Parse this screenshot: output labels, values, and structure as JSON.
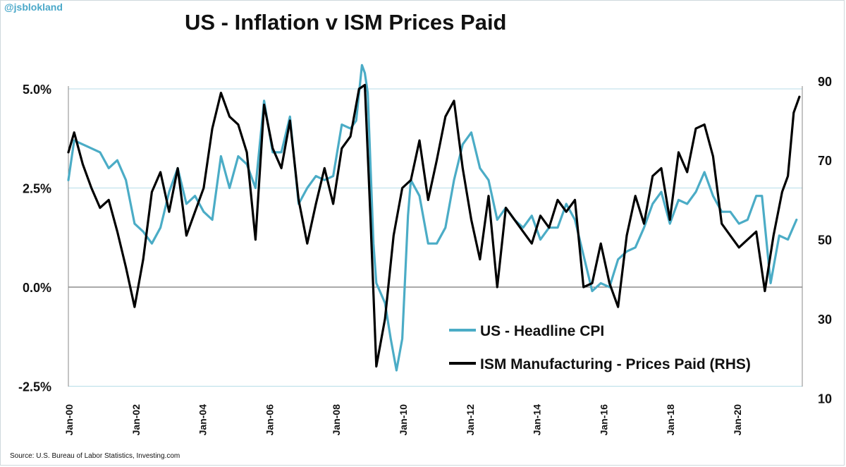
{
  "handle": "@jsblokland",
  "colors": {
    "handle": "#4aa8c9",
    "cpi": "#4bacc6",
    "ism": "#000000",
    "grid": "#b7dde8"
  },
  "source": "Source: U.S. Bureau of Labor Statistics, Investing.com",
  "chart_data": {
    "type": "line",
    "title": "US - Inflation v ISM Prices Paid",
    "xlabel": "",
    "ylabel": "",
    "x_ticks": [
      "Jan-00",
      "Jan-02",
      "Jan-04",
      "Jan-06",
      "Jan-08",
      "Jan-10",
      "Jan-12",
      "Jan-14",
      "Jan-16",
      "Jan-18",
      "Jan-20"
    ],
    "y_left": {
      "ticks": [
        "5.0%",
        "2.5%",
        "0.0%",
        "-2.5%"
      ],
      "values": [
        5.0,
        2.5,
        0.0,
        -2.5
      ],
      "lim": [
        -2.5,
        5.0
      ]
    },
    "y_right": {
      "ticks": [
        "90",
        "70",
        "50",
        "30",
        "10"
      ],
      "values": [
        90,
        70,
        50,
        30,
        10
      ],
      "lim": [
        10,
        90
      ]
    },
    "grid": true,
    "legend_position": "bottom-right",
    "series": [
      {
        "name": "US - Headline CPI",
        "axis": "left",
        "color": "#4bacc6",
        "points": [
          [
            "2000-01",
            2.7
          ],
          [
            "2000-03",
            3.7
          ],
          [
            "2000-06",
            3.6
          ],
          [
            "2000-09",
            3.5
          ],
          [
            "2000-12",
            3.4
          ],
          [
            "2001-03",
            3.0
          ],
          [
            "2001-06",
            3.2
          ],
          [
            "2001-09",
            2.7
          ],
          [
            "2001-12",
            1.6
          ],
          [
            "2002-03",
            1.4
          ],
          [
            "2002-06",
            1.1
          ],
          [
            "2002-09",
            1.5
          ],
          [
            "2002-12",
            2.4
          ],
          [
            "2003-03",
            3.0
          ],
          [
            "2003-06",
            2.1
          ],
          [
            "2003-09",
            2.3
          ],
          [
            "2003-12",
            1.9
          ],
          [
            "2004-03",
            1.7
          ],
          [
            "2004-06",
            3.3
          ],
          [
            "2004-09",
            2.5
          ],
          [
            "2004-12",
            3.3
          ],
          [
            "2005-03",
            3.1
          ],
          [
            "2005-06",
            2.5
          ],
          [
            "2005-09",
            4.7
          ],
          [
            "2005-12",
            3.4
          ],
          [
            "2006-03",
            3.4
          ],
          [
            "2006-06",
            4.3
          ],
          [
            "2006-09",
            2.1
          ],
          [
            "2006-12",
            2.5
          ],
          [
            "2007-03",
            2.8
          ],
          [
            "2007-06",
            2.7
          ],
          [
            "2007-09",
            2.8
          ],
          [
            "2007-12",
            4.1
          ],
          [
            "2008-03",
            4.0
          ],
          [
            "2008-05",
            4.2
          ],
          [
            "2008-07",
            5.6
          ],
          [
            "2008-08",
            5.4
          ],
          [
            "2008-09",
            4.9
          ],
          [
            "2008-11",
            1.1
          ],
          [
            "2008-12",
            0.1
          ],
          [
            "2009-03",
            -0.4
          ],
          [
            "2009-05",
            -1.3
          ],
          [
            "2009-07",
            -2.1
          ],
          [
            "2009-09",
            -1.3
          ],
          [
            "2009-11",
            1.8
          ],
          [
            "2009-12",
            2.7
          ],
          [
            "2010-03",
            2.3
          ],
          [
            "2010-06",
            1.1
          ],
          [
            "2010-09",
            1.1
          ],
          [
            "2010-12",
            1.5
          ],
          [
            "2011-03",
            2.7
          ],
          [
            "2011-06",
            3.6
          ],
          [
            "2011-09",
            3.9
          ],
          [
            "2011-12",
            3.0
          ],
          [
            "2012-03",
            2.7
          ],
          [
            "2012-06",
            1.7
          ],
          [
            "2012-09",
            2.0
          ],
          [
            "2012-12",
            1.7
          ],
          [
            "2013-03",
            1.5
          ],
          [
            "2013-06",
            1.8
          ],
          [
            "2013-09",
            1.2
          ],
          [
            "2013-12",
            1.5
          ],
          [
            "2014-03",
            1.5
          ],
          [
            "2014-06",
            2.1
          ],
          [
            "2014-09",
            1.7
          ],
          [
            "2014-12",
            0.8
          ],
          [
            "2015-03",
            -0.1
          ],
          [
            "2015-06",
            0.1
          ],
          [
            "2015-09",
            0.0
          ],
          [
            "2015-12",
            0.7
          ],
          [
            "2016-03",
            0.9
          ],
          [
            "2016-06",
            1.0
          ],
          [
            "2016-09",
            1.5
          ],
          [
            "2016-12",
            2.1
          ],
          [
            "2017-03",
            2.4
          ],
          [
            "2017-06",
            1.6
          ],
          [
            "2017-09",
            2.2
          ],
          [
            "2017-12",
            2.1
          ],
          [
            "2018-03",
            2.4
          ],
          [
            "2018-06",
            2.9
          ],
          [
            "2018-09",
            2.3
          ],
          [
            "2018-12",
            1.9
          ],
          [
            "2019-03",
            1.9
          ],
          [
            "2019-06",
            1.6
          ],
          [
            "2019-09",
            1.7
          ],
          [
            "2019-12",
            2.3
          ],
          [
            "2020-02",
            2.3
          ],
          [
            "2020-05",
            0.1
          ],
          [
            "2020-08",
            1.3
          ],
          [
            "2020-11",
            1.2
          ],
          [
            "2021-02",
            1.7
          ]
        ]
      },
      {
        "name": "ISM Manufacturing - Prices Paid (RHS)",
        "axis": "right",
        "color": "#000000",
        "points": [
          [
            "2000-01",
            72
          ],
          [
            "2000-03",
            77
          ],
          [
            "2000-06",
            69
          ],
          [
            "2000-09",
            63
          ],
          [
            "2000-12",
            58
          ],
          [
            "2001-03",
            60
          ],
          [
            "2001-06",
            52
          ],
          [
            "2001-09",
            43
          ],
          [
            "2001-12",
            33
          ],
          [
            "2002-03",
            45
          ],
          [
            "2002-06",
            62
          ],
          [
            "2002-09",
            67
          ],
          [
            "2002-12",
            57
          ],
          [
            "2003-03",
            68
          ],
          [
            "2003-06",
            51
          ],
          [
            "2003-09",
            57
          ],
          [
            "2003-12",
            63
          ],
          [
            "2004-03",
            78
          ],
          [
            "2004-06",
            87
          ],
          [
            "2004-09",
            81
          ],
          [
            "2004-12",
            79
          ],
          [
            "2005-03",
            72
          ],
          [
            "2005-06",
            50
          ],
          [
            "2005-09",
            84
          ],
          [
            "2005-12",
            73
          ],
          [
            "2006-03",
            68
          ],
          [
            "2006-06",
            80
          ],
          [
            "2006-09",
            60
          ],
          [
            "2006-12",
            49
          ],
          [
            "2007-03",
            59
          ],
          [
            "2007-06",
            68
          ],
          [
            "2007-09",
            59
          ],
          [
            "2007-12",
            73
          ],
          [
            "2008-03",
            76
          ],
          [
            "2008-06",
            88
          ],
          [
            "2008-08",
            89
          ],
          [
            "2008-10",
            55
          ],
          [
            "2008-12",
            18
          ],
          [
            "2009-03",
            30
          ],
          [
            "2009-06",
            51
          ],
          [
            "2009-09",
            63
          ],
          [
            "2009-12",
            65
          ],
          [
            "2010-03",
            75
          ],
          [
            "2010-06",
            60
          ],
          [
            "2010-09",
            70
          ],
          [
            "2010-12",
            81
          ],
          [
            "2011-03",
            85
          ],
          [
            "2011-06",
            68
          ],
          [
            "2011-09",
            55
          ],
          [
            "2011-12",
            45
          ],
          [
            "2012-03",
            61
          ],
          [
            "2012-06",
            38
          ],
          [
            "2012-09",
            58
          ],
          [
            "2012-12",
            55
          ],
          [
            "2013-03",
            52
          ],
          [
            "2013-06",
            49
          ],
          [
            "2013-09",
            56
          ],
          [
            "2013-12",
            53
          ],
          [
            "2014-03",
            60
          ],
          [
            "2014-06",
            57
          ],
          [
            "2014-09",
            60
          ],
          [
            "2014-12",
            38
          ],
          [
            "2015-03",
            39
          ],
          [
            "2015-06",
            49
          ],
          [
            "2015-09",
            39
          ],
          [
            "2015-12",
            33
          ],
          [
            "2016-03",
            51
          ],
          [
            "2016-06",
            61
          ],
          [
            "2016-09",
            54
          ],
          [
            "2016-12",
            66
          ],
          [
            "2017-03",
            68
          ],
          [
            "2017-06",
            55
          ],
          [
            "2017-09",
            72
          ],
          [
            "2017-12",
            67
          ],
          [
            "2018-03",
            78
          ],
          [
            "2018-06",
            79
          ],
          [
            "2018-09",
            71
          ],
          [
            "2018-12",
            54
          ],
          [
            "2019-03",
            51
          ],
          [
            "2019-06",
            48
          ],
          [
            "2019-09",
            50
          ],
          [
            "2019-12",
            52
          ],
          [
            "2020-03",
            37
          ],
          [
            "2020-06",
            51
          ],
          [
            "2020-09",
            62
          ],
          [
            "2020-11",
            66
          ],
          [
            "2021-01",
            82
          ],
          [
            "2021-03",
            86
          ]
        ]
      }
    ]
  }
}
